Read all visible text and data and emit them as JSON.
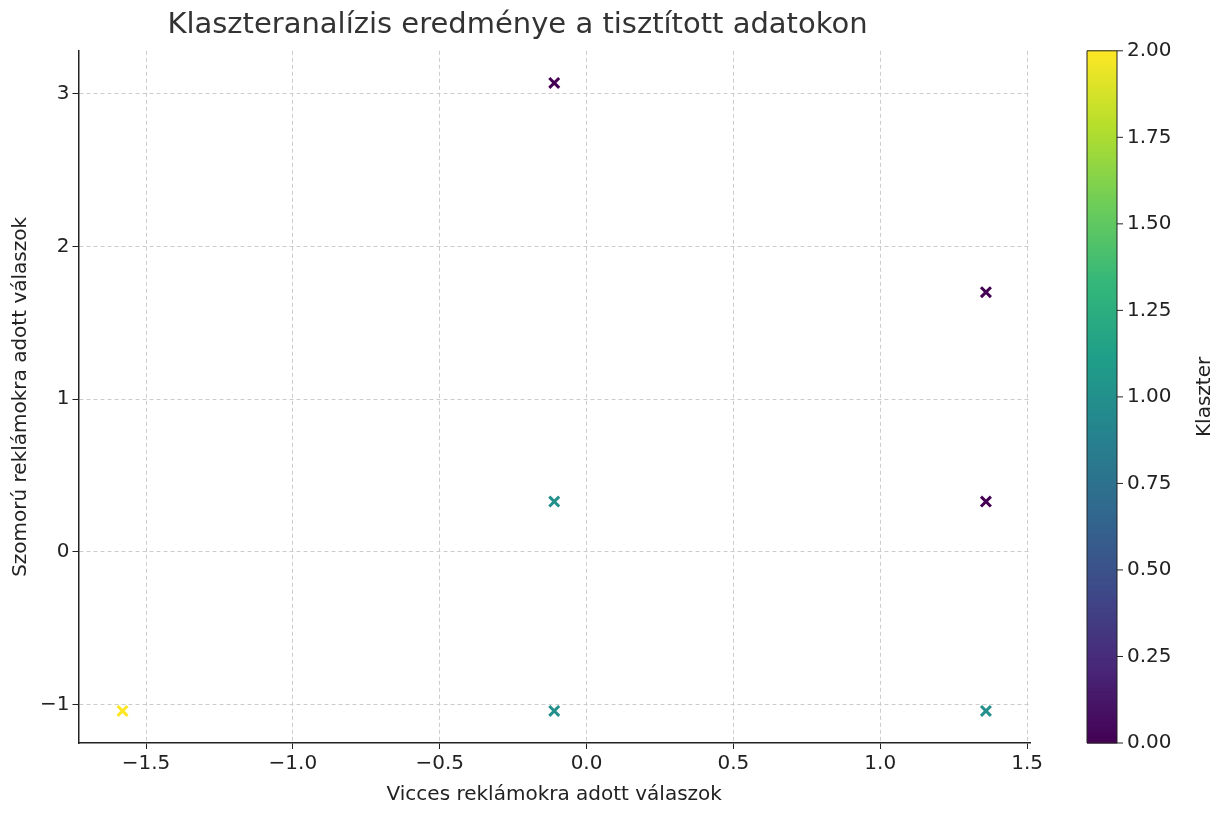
{
  "chart_data": {
    "type": "scatter",
    "title": "Klaszteranalízis eredménye a tisztított adatokon",
    "xlabel": "Vicces reklámokra adott válaszok",
    "ylabel": "Szomorú reklámokra adott válaszok",
    "clabel": "Klaszter",
    "x": [
      -0.11,
      1.36,
      1.36,
      -0.11,
      -0.11,
      1.36,
      -1.58
    ],
    "values": [
      3.07,
      1.7,
      0.33,
      0.33,
      -1.04,
      -1.04,
      -1.04
    ],
    "cvalues": [
      0,
      0,
      0,
      1,
      1,
      1,
      2
    ],
    "clim": [
      0,
      2
    ],
    "cticks": [
      {
        "value": 0,
        "label": "0.00"
      },
      {
        "value": 0.25,
        "label": "0.25"
      },
      {
        "value": 0.5,
        "label": "0.50"
      },
      {
        "value": 0.75,
        "label": "0.75"
      },
      {
        "value": 1,
        "label": "1.00"
      },
      {
        "value": 1.25,
        "label": "1.25"
      },
      {
        "value": 1.5,
        "label": "1.50"
      },
      {
        "value": 1.75,
        "label": "1.75"
      },
      {
        "value": 2,
        "label": "2.00"
      }
    ],
    "xlim": [
      -1.73,
      1.51
    ],
    "ylim": [
      -1.25,
      3.28
    ],
    "xticks": [
      {
        "value": -1.5,
        "label": "−1.5"
      },
      {
        "value": -1,
        "label": "−1.0"
      },
      {
        "value": -0.5,
        "label": "−0.5"
      },
      {
        "value": 0,
        "label": "0.0"
      },
      {
        "value": 0.5,
        "label": "0.5"
      },
      {
        "value": 1,
        "label": "1.0"
      },
      {
        "value": 1.5,
        "label": "1.5"
      }
    ],
    "yticks": [
      {
        "value": -1,
        "label": "−1"
      },
      0,
      1,
      2,
      3
    ],
    "grid": true,
    "marker": "cross"
  }
}
